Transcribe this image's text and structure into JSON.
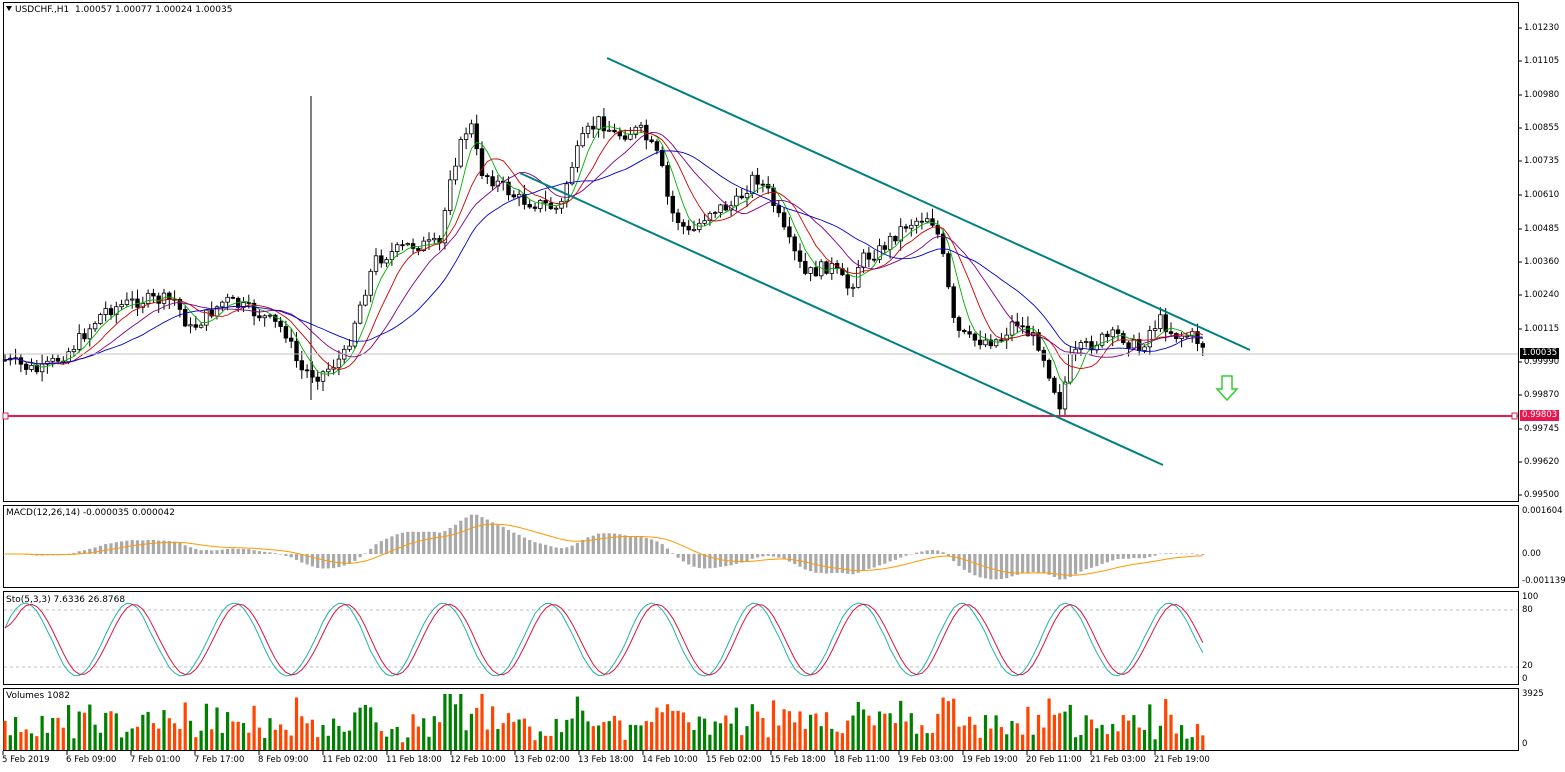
{
  "header": {
    "symbol": "USDCHF.,H1",
    "ohlc": "1.00057 1.00077 1.00024 1.00035"
  },
  "price_axis": [
    "1.01230",
    "1.01105",
    "1.00980",
    "1.00855",
    "1.00735",
    "1.00610",
    "1.00485",
    "1.00360",
    "1.00240",
    "1.00115",
    "0.99990",
    "0.99870",
    "0.99745",
    "0.99620",
    "0.99500"
  ],
  "current_price": "1.00035",
  "support_level": "0.99803",
  "macd": {
    "label": "MACD(12,26,14) -0.000035 0.000042",
    "axis": [
      "0.001604",
      "0.00",
      "-0.001139"
    ]
  },
  "stochastic": {
    "label": "Sto(5,3,3) 7.6336 26.8768",
    "axis": [
      "100",
      "80",
      "20",
      "0"
    ]
  },
  "volumes": {
    "label": "Volumes 1082",
    "axis": [
      "3925",
      "0"
    ]
  },
  "time_axis": [
    "5 Feb 2019",
    "6 Feb 09:00",
    "7 Feb 01:00",
    "7 Feb 17:00",
    "8 Feb 09:00",
    "11 Feb 02:00",
    "11 Feb 18:00",
    "12 Feb 10:00",
    "13 Feb 02:00",
    "13 Feb 18:00",
    "14 Feb 10:00",
    "15 Feb 02:00",
    "15 Feb 18:00",
    "18 Feb 11:00",
    "19 Feb 03:00",
    "19 Feb 19:00",
    "20 Feb 11:00",
    "21 Feb 03:00",
    "21 Feb 19:00"
  ],
  "colors": {
    "channel": "#008080",
    "support": "#e8174d",
    "arrow": "#32cd32",
    "bull_volume": "#008000",
    "bear_volume": "#ff4500",
    "macd_hist": "#a9a9a9",
    "macd_signal": "#ff9900",
    "sto_main": "#20b2aa",
    "sto_signal": "#dc143c"
  },
  "icons": {
    "header_marker": "triangle-down-icon",
    "forecast_arrow": "arrow-down-icon"
  }
}
